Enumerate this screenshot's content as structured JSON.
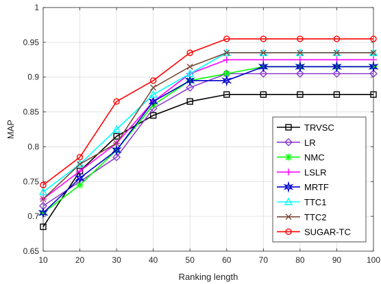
{
  "chart_data": {
    "type": "line",
    "xlabel": "Ranking length",
    "ylabel": "MAP",
    "xlim": [
      10,
      100
    ],
    "ylim": [
      0.65,
      1
    ],
    "x": [
      10,
      20,
      30,
      40,
      50,
      60,
      70,
      80,
      90,
      100
    ],
    "xticks": [
      "10",
      "20",
      "30",
      "40",
      "50",
      "60",
      "70",
      "80",
      "90",
      "100"
    ],
    "yticks": [
      "0.65",
      "0.7",
      "0.75",
      "0.8",
      "0.85",
      "0.9",
      "0.95",
      "1"
    ],
    "grid": true,
    "legend_position": "bottom-right",
    "series": [
      {
        "name": "TRVSC",
        "color": "#000000",
        "marker": "square",
        "values": [
          0.685,
          0.765,
          0.815,
          0.845,
          0.865,
          0.875,
          0.875,
          0.875,
          0.875,
          0.875
        ]
      },
      {
        "name": "LR",
        "color": "#8a3ccd",
        "marker": "diamond",
        "values": [
          0.715,
          0.75,
          0.785,
          0.855,
          0.885,
          0.905,
          0.905,
          0.905,
          0.905,
          0.905
        ]
      },
      {
        "name": "NMC",
        "color": "#00ff00",
        "marker": "asterisk",
        "values": [
          0.705,
          0.745,
          0.795,
          0.86,
          0.895,
          0.905,
          0.915,
          0.915,
          0.915,
          0.915
        ]
      },
      {
        "name": "LSLR",
        "color": "#ff00ff",
        "marker": "plus",
        "values": [
          0.725,
          0.765,
          0.805,
          0.865,
          0.905,
          0.925,
          0.925,
          0.925,
          0.925,
          0.925
        ]
      },
      {
        "name": "MRTF",
        "color": "#0000cc",
        "marker": "hexagram",
        "values": [
          0.705,
          0.755,
          0.795,
          0.865,
          0.895,
          0.895,
          0.915,
          0.915,
          0.915,
          0.915
        ]
      },
      {
        "name": "TTC1",
        "color": "#00ffff",
        "marker": "triangle",
        "values": [
          0.735,
          0.775,
          0.825,
          0.875,
          0.905,
          0.935,
          0.935,
          0.935,
          0.935,
          0.935
        ]
      },
      {
        "name": "TTC2",
        "color": "#7a4a3a",
        "marker": "x",
        "values": [
          0.725,
          0.775,
          0.805,
          0.885,
          0.915,
          0.935,
          0.935,
          0.935,
          0.935,
          0.935
        ]
      },
      {
        "name": "SUGAR-TC",
        "color": "#ff0000",
        "marker": "circle",
        "values": [
          0.745,
          0.785,
          0.865,
          0.895,
          0.935,
          0.955,
          0.955,
          0.955,
          0.955,
          0.955
        ]
      }
    ]
  }
}
